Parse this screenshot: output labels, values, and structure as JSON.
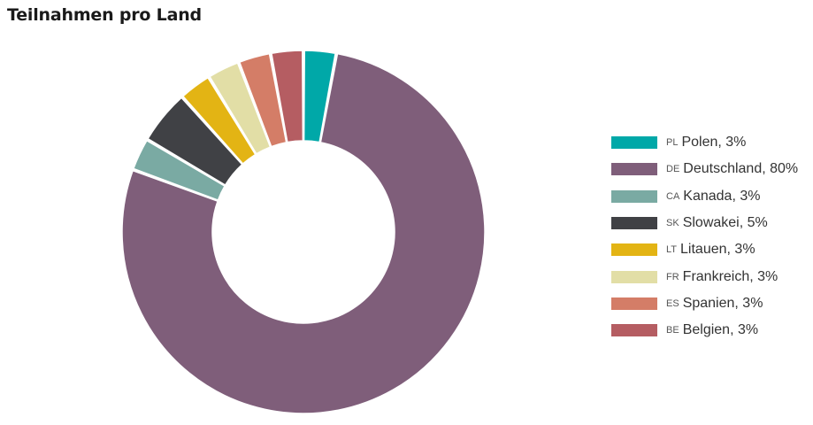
{
  "chart_data": {
    "type": "pie",
    "title": "Teilnahmen pro Land",
    "donut": true,
    "categories": [
      "Polen",
      "Deutschland",
      "Kanada",
      "Slowakei",
      "Litauen",
      "Frankreich",
      "Spanien",
      "Belgien"
    ],
    "series": [
      {
        "values": [
          3,
          80,
          3,
          5,
          3,
          3,
          3,
          3
        ]
      }
    ],
    "legend_position": "right",
    "legend": [
      {
        "code": "PL",
        "label": "Polen",
        "value": 3,
        "text": "Polen, 3%",
        "color": "#00a8a8"
      },
      {
        "code": "DE",
        "label": "Deutschland",
        "value": 80,
        "text": "Deutschland, 80%",
        "color": "#7f5e7a"
      },
      {
        "code": "CA",
        "label": "Kanada",
        "value": 3,
        "text": "Kanada, 3%",
        "color": "#7aaaa3"
      },
      {
        "code": "SK",
        "label": "Slowakei",
        "value": 5,
        "text": "Slowakei, 5%",
        "color": "#404145"
      },
      {
        "code": "LT",
        "label": "Litauen",
        "value": 3,
        "text": "Litauen, 3%",
        "color": "#e3b414"
      },
      {
        "code": "FR",
        "label": "Frankreich",
        "value": 3,
        "text": "Frankreich, 3%",
        "color": "#e2dea6"
      },
      {
        "code": "ES",
        "label": "Spanien",
        "value": 3,
        "text": "Spanien, 3%",
        "color": "#d47d67"
      },
      {
        "code": "BE",
        "label": "Belgien",
        "value": 3,
        "text": "Belgien, 3%",
        "color": "#b55d62"
      }
    ]
  }
}
